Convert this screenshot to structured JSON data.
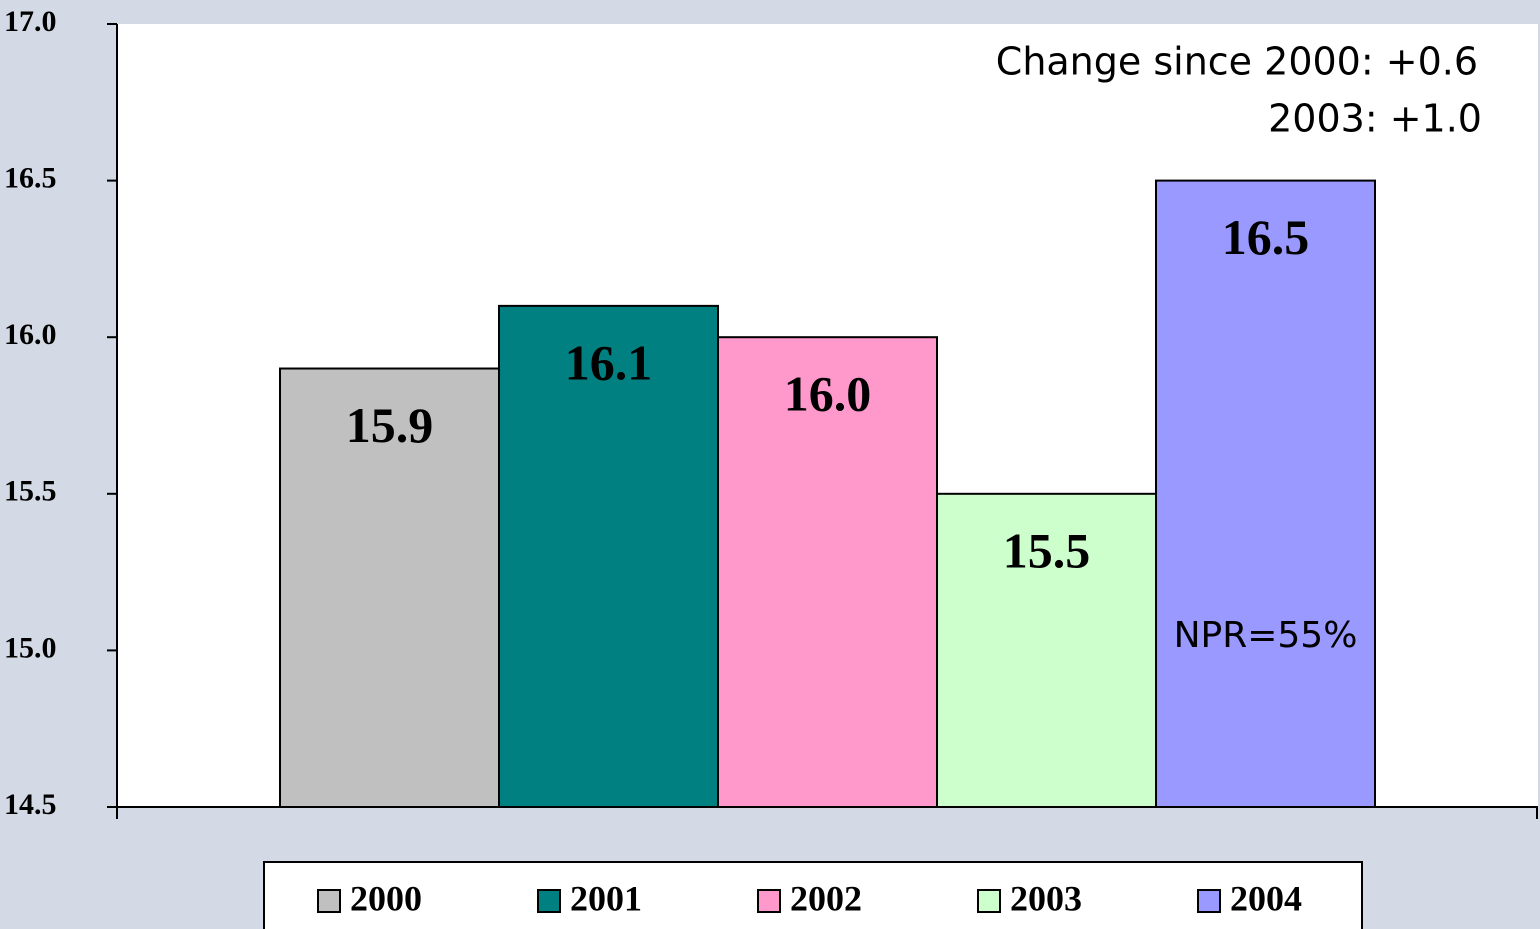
{
  "chart_data": {
    "type": "bar",
    "series": [
      {
        "name": "2000",
        "color": "#c0c0c0",
        "values": [
          15.9
        ]
      },
      {
        "name": "2001",
        "color": "#008080",
        "values": [
          16.1
        ]
      },
      {
        "name": "2002",
        "color": "#ff99cc",
        "values": [
          16
        ],
        "value_labels": [
          "16.0"
        ]
      },
      {
        "name": "2003",
        "color": "#ccffcc",
        "values": [
          15.5
        ]
      },
      {
        "name": "2004",
        "color": "#9999ff",
        "values": [
          16.5
        ]
      }
    ],
    "ylim": [
      14.5,
      17
    ],
    "yticks": [
      {
        "value": 14.5,
        "label": "14.5"
      },
      {
        "value": 15,
        "label": "15.0"
      },
      15.5,
      {
        "value": 16,
        "label": "16.0"
      },
      16.5,
      {
        "value": 17,
        "label": "17.0"
      }
    ],
    "annotations": [
      "Change since 2000: +0.6",
      "2003: +1.0",
      "NPR=55%"
    ],
    "legend": "bottom"
  }
}
